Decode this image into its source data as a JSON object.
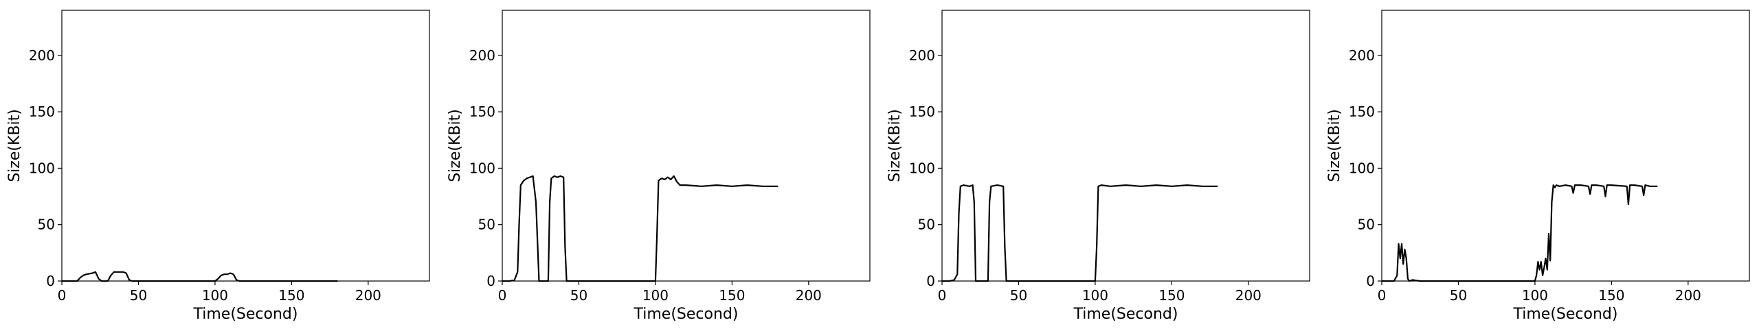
{
  "chart_data": [
    {
      "type": "line",
      "xlabel": "Time(Second)",
      "ylabel": "Size(KBit)",
      "xlim": [
        0,
        240
      ],
      "ylim": [
        0,
        240
      ],
      "xticks": [
        0,
        50,
        100,
        150,
        200
      ],
      "yticks": [
        0,
        50,
        100,
        150,
        200
      ],
      "grid": false,
      "color": "#000000",
      "series": [
        {
          "x": [
            0,
            10,
            12,
            14,
            16,
            20,
            22,
            24,
            26,
            30,
            32,
            34,
            40,
            42,
            44,
            46,
            50,
            60,
            70,
            80,
            90,
            100,
            102,
            104,
            106,
            108,
            110,
            112,
            114,
            116,
            120,
            130,
            140,
            150,
            160,
            170,
            180
          ],
          "y": [
            0,
            0,
            3,
            5,
            6,
            7,
            8,
            2,
            0,
            0,
            5,
            8,
            8,
            7,
            1,
            0,
            0,
            0,
            0,
            0,
            0,
            0,
            2,
            5,
            6,
            6,
            7,
            6,
            1,
            0,
            0,
            0,
            0,
            0,
            0,
            0,
            0
          ]
        }
      ]
    },
    {
      "type": "line",
      "xlabel": "Time(Second)",
      "ylabel": "Size(KBit)",
      "xlim": [
        0,
        240
      ],
      "ylim": [
        0,
        240
      ],
      "xticks": [
        0,
        50,
        100,
        150,
        200
      ],
      "yticks": [
        0,
        50,
        100,
        150,
        200
      ],
      "grid": false,
      "color": "#000000",
      "series": [
        {
          "x": [
            0,
            5,
            8,
            10,
            11,
            12,
            14,
            16,
            18,
            20,
            22,
            24,
            27,
            30,
            31,
            32,
            34,
            36,
            38,
            40,
            41,
            42,
            45,
            50,
            60,
            70,
            80,
            90,
            95,
            98,
            100,
            101,
            102,
            104,
            106,
            108,
            110,
            112,
            114,
            116,
            120,
            130,
            140,
            150,
            160,
            170,
            180
          ],
          "y": [
            0,
            0,
            1,
            8,
            50,
            85,
            89,
            91,
            92,
            93,
            70,
            0,
            0,
            0,
            70,
            91,
            93,
            92,
            93,
            92,
            30,
            0,
            0,
            0,
            0,
            0,
            0,
            0,
            0,
            0,
            0,
            40,
            89,
            91,
            90,
            92,
            90,
            93,
            88,
            85,
            85,
            84,
            85,
            84,
            85,
            84,
            84
          ]
        }
      ]
    },
    {
      "type": "line",
      "xlabel": "Time(Second)",
      "ylabel": "Size(KBit)",
      "xlim": [
        0,
        240
      ],
      "ylim": [
        0,
        240
      ],
      "xticks": [
        0,
        50,
        100,
        150,
        200
      ],
      "yticks": [
        0,
        50,
        100,
        150,
        200
      ],
      "grid": false,
      "color": "#000000",
      "series": [
        {
          "x": [
            0,
            5,
            8,
            10,
            11,
            12,
            14,
            18,
            20,
            21,
            22,
            25,
            28,
            30,
            31,
            32,
            36,
            40,
            41,
            42,
            45,
            50,
            60,
            70,
            80,
            90,
            95,
            100,
            101,
            102,
            104,
            110,
            120,
            130,
            140,
            150,
            160,
            170,
            180
          ],
          "y": [
            0,
            0,
            1,
            6,
            60,
            84,
            85,
            84,
            85,
            70,
            0,
            0,
            0,
            0,
            70,
            84,
            85,
            84,
            30,
            0,
            0,
            0,
            0,
            0,
            0,
            0,
            0,
            0,
            30,
            84,
            85,
            84,
            85,
            84,
            85,
            84,
            85,
            84,
            84
          ]
        }
      ]
    },
    {
      "type": "line",
      "xlabel": "Time(Second)",
      "ylabel": "Size(KBit)",
      "xlim": [
        0,
        240
      ],
      "ylim": [
        0,
        240
      ],
      "xticks": [
        0,
        50,
        100,
        150,
        200
      ],
      "yticks": [
        0,
        50,
        100,
        150,
        200
      ],
      "grid": false,
      "color": "#000000",
      "series": [
        {
          "x": [
            0,
            8,
            10,
            11,
            12,
            13,
            14,
            15,
            16,
            17,
            18,
            20,
            25,
            30,
            40,
            60,
            80,
            95,
            100,
            101,
            102,
            103,
            104,
            105,
            106,
            107,
            108,
            109,
            110,
            111,
            112,
            113,
            114,
            116,
            120,
            124,
            125,
            126,
            130,
            135,
            136,
            137,
            140,
            145,
            146,
            147,
            150,
            160,
            161,
            162,
            165,
            170,
            171,
            172,
            175,
            180
          ],
          "y": [
            0,
            0,
            5,
            33,
            20,
            33,
            15,
            28,
            20,
            2,
            0,
            1,
            0,
            0,
            0,
            0,
            0,
            0,
            0,
            5,
            17,
            10,
            17,
            5,
            12,
            20,
            10,
            42,
            18,
            70,
            85,
            83,
            85,
            84,
            85,
            84,
            78,
            85,
            85,
            84,
            77,
            85,
            85,
            84,
            75,
            85,
            85,
            84,
            68,
            85,
            85,
            84,
            76,
            85,
            84,
            84
          ]
        }
      ]
    }
  ]
}
